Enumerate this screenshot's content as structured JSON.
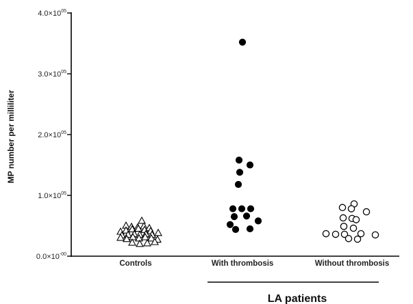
{
  "chart_data": {
    "type": "scatter",
    "ylabel": "MP number per milliliter",
    "y_ticks": [
      {
        "value": 0,
        "base": "0.0×10",
        "exp": "-00"
      },
      {
        "value": 100000,
        "base": "1.0×10",
        "exp": "05"
      },
      {
        "value": 200000,
        "base": "2.0×10",
        "exp": "05"
      },
      {
        "value": 300000,
        "base": "3.0×10",
        "exp": "05"
      },
      {
        "value": 400000,
        "base": "4.0×10",
        "exp": "05"
      }
    ],
    "ylim": [
      0,
      400000
    ],
    "categories": [
      "Controls",
      "With thrombosis",
      "Without thrombosis"
    ],
    "group_label": "LA patients",
    "series": [
      {
        "category": "Controls",
        "marker": "open-triangle",
        "points": [
          {
            "dx": -14,
            "y": 50000
          },
          {
            "dx": -6,
            "y": 48000
          },
          {
            "dx": 3,
            "y": 47000
          },
          {
            "dx": 12,
            "y": 49000
          },
          {
            "dx": 20,
            "y": 46000
          },
          {
            "dx": -22,
            "y": 40000
          },
          {
            "dx": -14,
            "y": 42000
          },
          {
            "dx": -5,
            "y": 44000
          },
          {
            "dx": 4,
            "y": 45000
          },
          {
            "dx": 13,
            "y": 43000
          },
          {
            "dx": 22,
            "y": 41000
          },
          {
            "dx": 9,
            "y": 58000
          },
          {
            "dx": -20,
            "y": 34000
          },
          {
            "dx": -11,
            "y": 35000
          },
          {
            "dx": -2,
            "y": 36000
          },
          {
            "dx": 6,
            "y": 35000
          },
          {
            "dx": 15,
            "y": 36000
          },
          {
            "dx": 24,
            "y": 35000
          },
          {
            "dx": 33,
            "y": 38000
          },
          {
            "dx": -22,
            "y": 30000
          },
          {
            "dx": -13,
            "y": 28000
          },
          {
            "dx": -4,
            "y": 31000
          },
          {
            "dx": 5,
            "y": 29000
          },
          {
            "dx": 14,
            "y": 31000
          },
          {
            "dx": 23,
            "y": 29000
          },
          {
            "dx": 32,
            "y": 27000
          },
          {
            "dx": -5,
            "y": 22000
          },
          {
            "dx": 6,
            "y": 20000
          },
          {
            "dx": 17,
            "y": 21000
          },
          {
            "dx": 28,
            "y": 23000
          }
        ]
      },
      {
        "category": "With thrombosis",
        "marker": "filled-circle",
        "points": [
          {
            "dx": 0,
            "y": 352000
          },
          {
            "dx": -5,
            "y": 158000
          },
          {
            "dx": 11,
            "y": 150000
          },
          {
            "dx": -4,
            "y": 138000
          },
          {
            "dx": -6,
            "y": 118000
          },
          {
            "dx": -14,
            "y": 78000
          },
          {
            "dx": -1,
            "y": 78000
          },
          {
            "dx": 12,
            "y": 78000
          },
          {
            "dx": -12,
            "y": 65000
          },
          {
            "dx": 6,
            "y": 66000
          },
          {
            "dx": -18,
            "y": 52000
          },
          {
            "dx": 23,
            "y": 58000
          },
          {
            "dx": -10,
            "y": 44000
          },
          {
            "dx": 11,
            "y": 45000
          }
        ]
      },
      {
        "category": "Without thrombosis",
        "marker": "open-circle",
        "points": [
          {
            "dx": 3,
            "y": 86000
          },
          {
            "dx": -14,
            "y": 80000
          },
          {
            "dx": -1,
            "y": 78000
          },
          {
            "dx": 21,
            "y": 73000
          },
          {
            "dx": -13,
            "y": 63000
          },
          {
            "dx": 0,
            "y": 62000
          },
          {
            "dx": 6,
            "y": 60000
          },
          {
            "dx": -12,
            "y": 49000
          },
          {
            "dx": 2,
            "y": 46000
          },
          {
            "dx": -38,
            "y": 37000
          },
          {
            "dx": -24,
            "y": 36000
          },
          {
            "dx": -11,
            "y": 36000
          },
          {
            "dx": 13,
            "y": 37000
          },
          {
            "dx": 34,
            "y": 35000
          },
          {
            "dx": -5,
            "y": 29000
          },
          {
            "dx": 8,
            "y": 28000
          }
        ]
      }
    ]
  }
}
